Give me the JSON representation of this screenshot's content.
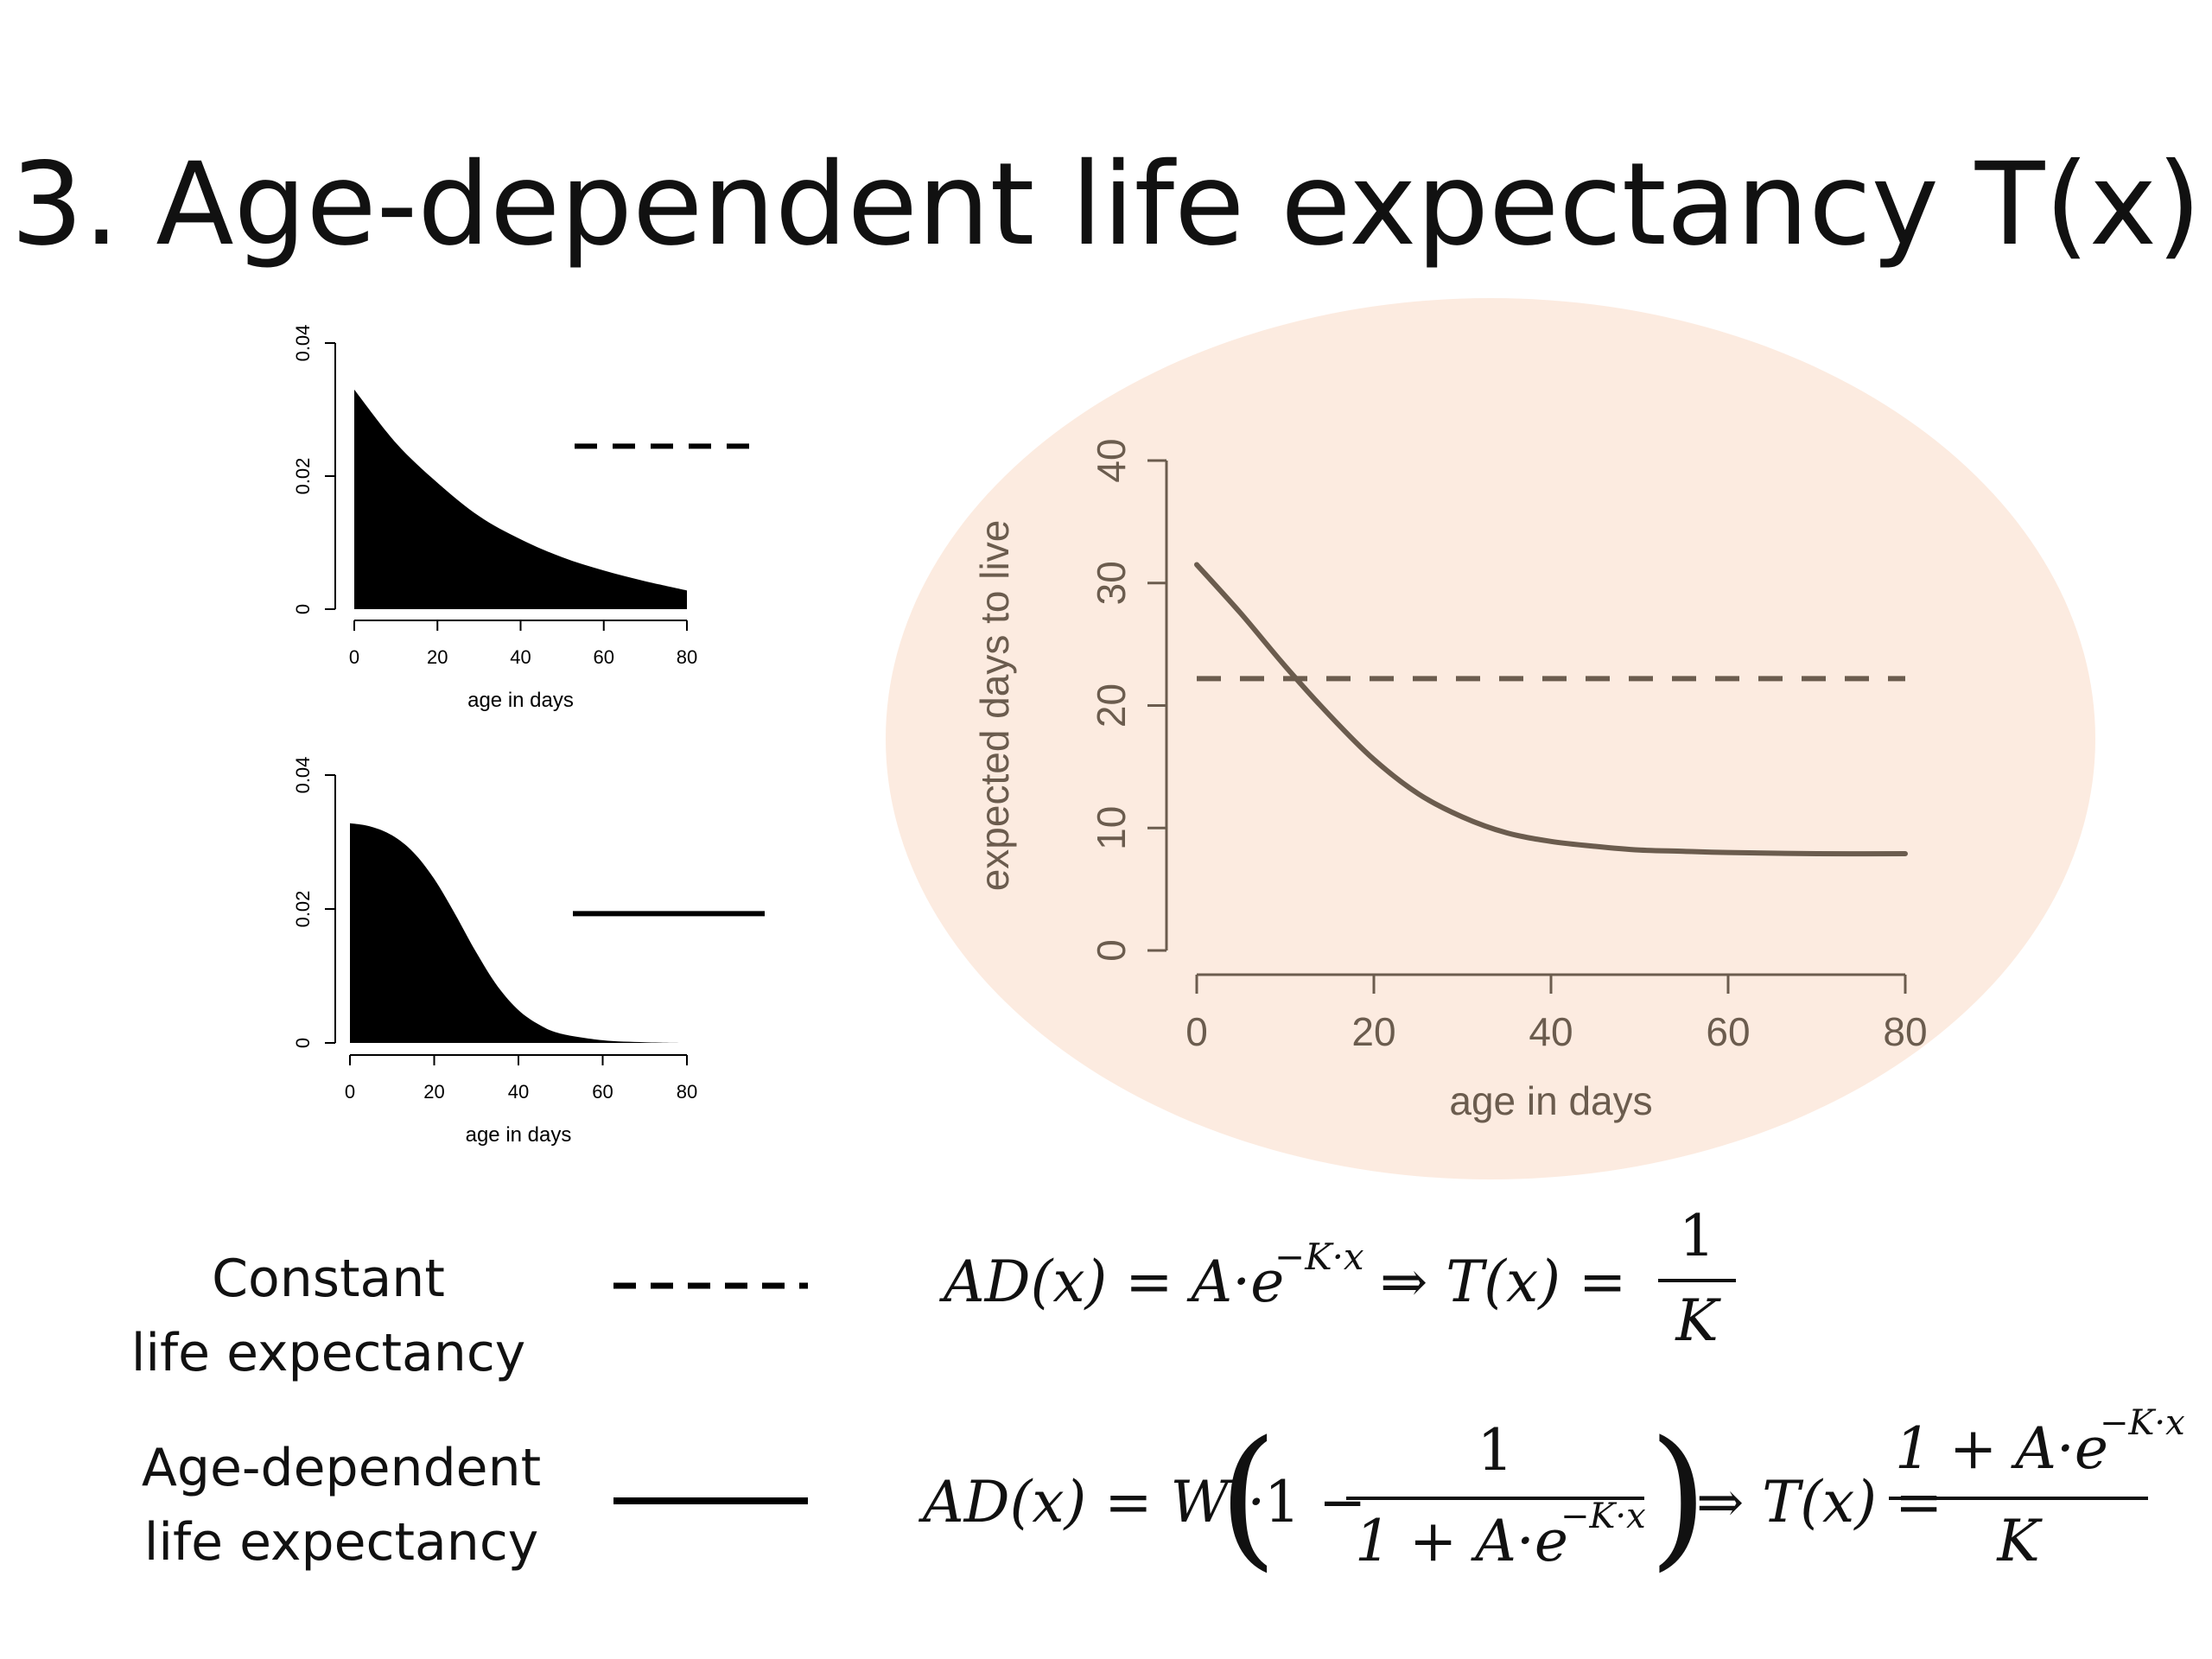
{
  "slide": {
    "title": "3. Age-dependent life expectancy T(x)"
  },
  "legend": {
    "constant": [
      "Constant",
      "life expectancy"
    ],
    "age_dependent": [
      "Age-dependent",
      "life expectancy"
    ]
  },
  "equations": {
    "eq1": {
      "lhs": "AD(x) = A·e",
      "lhs_exp": "−K·x",
      "arrow": "⇒ T(x) =",
      "num": "1",
      "den": "K"
    },
    "eq2": {
      "lhs": "AD(x) = W ·",
      "one": "1 −",
      "inner_num": "1",
      "inner_den": "1 + A·e",
      "inner_den_exp": "−K·x",
      "arrow": "⇒ T(x) =",
      "num": "1 + A·e",
      "num_exp": "−K·x",
      "den": "K"
    }
  },
  "colors": {
    "main_bg": "#fcebe0",
    "main_ink": "#6b5c4e",
    "small_ink": "#000000"
  },
  "chart_data": [
    {
      "id": "small-top",
      "type": "area",
      "xlabel": "age in days",
      "ylabel": "",
      "xlim": [
        0,
        80
      ],
      "ylim": [
        0,
        0.04
      ],
      "xticks": [
        0,
        20,
        40,
        60,
        80
      ],
      "yticks": [
        0,
        0.02,
        0.04
      ],
      "ytick_labels": [
        "0",
        "0.02",
        "0.04"
      ],
      "x": [
        0,
        10,
        20,
        30,
        40,
        50,
        60,
        70,
        80
      ],
      "y": [
        0.033,
        0.025,
        0.019,
        0.014,
        0.0105,
        0.0078,
        0.0058,
        0.0042,
        0.0028
      ],
      "reference_line": {
        "style": "dashed",
        "y": 0.0245
      }
    },
    {
      "id": "small-bottom",
      "type": "area",
      "xlabel": "age in days",
      "ylabel": "",
      "xlim": [
        0,
        80
      ],
      "ylim": [
        0,
        0.04
      ],
      "xticks": [
        0,
        20,
        40,
        60,
        80
      ],
      "yticks": [
        0,
        0.02,
        0.04
      ],
      "ytick_labels": [
        "0",
        "0.02",
        "0.04"
      ],
      "x": [
        0,
        5,
        10,
        15,
        20,
        25,
        30,
        35,
        40,
        45,
        50,
        60,
        70,
        80
      ],
      "y": [
        0.0328,
        0.0323,
        0.031,
        0.0285,
        0.0245,
        0.0192,
        0.0135,
        0.0085,
        0.0049,
        0.0027,
        0.0014,
        0.0004,
        0.0001,
        0.0
      ],
      "reference_line": {
        "style": "solid",
        "y": 0.0193
      }
    },
    {
      "id": "main",
      "type": "line",
      "xlabel": "age in days",
      "ylabel": "expected days to live",
      "xlim": [
        0,
        80
      ],
      "ylim": [
        0,
        40
      ],
      "xticks": [
        0,
        20,
        40,
        60,
        80
      ],
      "yticks": [
        0,
        10,
        20,
        30,
        40
      ],
      "series": [
        {
          "style": "solid",
          "x": [
            0,
            5,
            10,
            15,
            20,
            25,
            30,
            35,
            40,
            45,
            50,
            55,
            60,
            70,
            80
          ],
          "y": [
            31.5,
            27.5,
            23.2,
            19.2,
            15.6,
            12.8,
            10.9,
            9.6,
            8.9,
            8.5,
            8.2,
            8.1,
            8.0,
            7.9,
            7.9
          ]
        },
        {
          "style": "dashed",
          "x": [
            0,
            80
          ],
          "y": [
            22.2,
            22.2
          ]
        }
      ]
    }
  ]
}
